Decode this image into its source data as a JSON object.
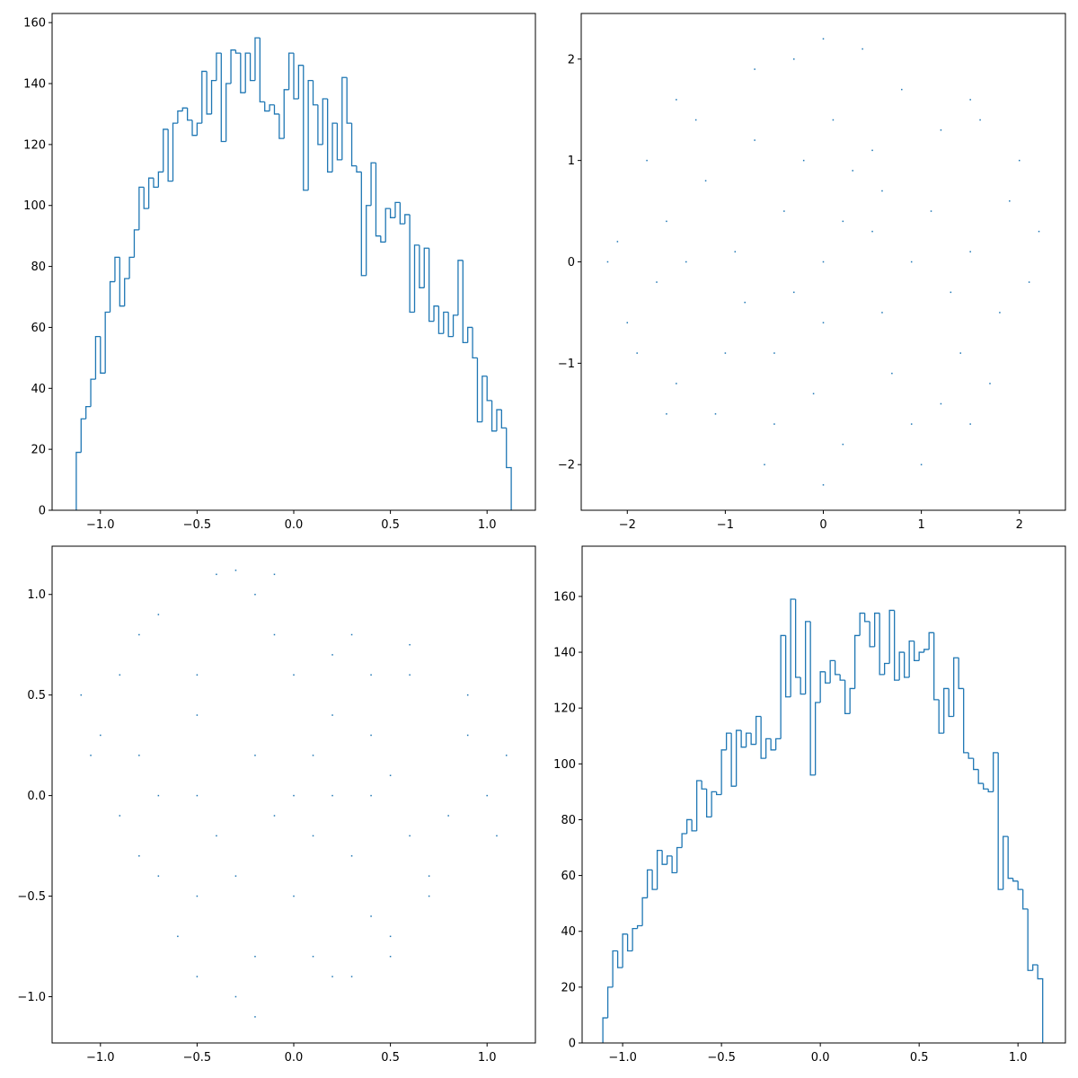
{
  "chart_data": [
    {
      "type": "histogram",
      "color": "#1f77b4",
      "bins": [
        -1.125,
        -1.1,
        -1.075,
        -1.05,
        -1.025,
        -1,
        -0.975,
        -0.95,
        -0.925,
        -0.9,
        -0.875,
        -0.85,
        -0.825,
        -0.8,
        -0.775,
        -0.75,
        -0.725,
        -0.7,
        -0.675,
        -0.65,
        -0.625,
        -0.6,
        -0.575,
        -0.55,
        -0.525,
        -0.5,
        -0.475,
        -0.45,
        -0.425,
        -0.4,
        -0.375,
        -0.35,
        -0.325,
        -0.3,
        -0.275,
        -0.25,
        -0.225,
        -0.2,
        -0.175,
        -0.15,
        -0.125,
        -0.1,
        -0.075,
        -0.05,
        -0.025,
        0,
        0.025,
        0.05,
        0.075,
        0.1,
        0.125,
        0.15,
        0.175,
        0.2,
        0.225,
        0.25,
        0.275,
        0.3,
        0.325,
        0.35,
        0.375,
        0.4,
        0.425,
        0.45,
        0.475,
        0.5,
        0.525,
        0.55,
        0.575,
        0.6,
        0.625,
        0.65,
        0.675,
        0.7,
        0.725,
        0.75,
        0.775,
        0.8,
        0.825,
        0.85,
        0.875,
        0.9,
        0.925,
        0.95,
        0.975,
        1,
        1.025,
        1.05,
        1.075,
        1.1,
        1.125
      ],
      "values": [
        19,
        30,
        34,
        43,
        57,
        45,
        65,
        75,
        83,
        67,
        76,
        83,
        92,
        106,
        99,
        109,
        106,
        111,
        125,
        108,
        127,
        131,
        132,
        128,
        123,
        127,
        144,
        130,
        141,
        150,
        121,
        140,
        151,
        150,
        137,
        150,
        141,
        155,
        134,
        131,
        133,
        130,
        122,
        138,
        150,
        135,
        146,
        105,
        141,
        133,
        120,
        135,
        111,
        127,
        115,
        142,
        127,
        113,
        111,
        77,
        100,
        114,
        90,
        88,
        99,
        96,
        101,
        94,
        97,
        65,
        87,
        73,
        86,
        62,
        67,
        58,
        65,
        57,
        64,
        82,
        55,
        60,
        50,
        29,
        44,
        36,
        26,
        33,
        27,
        14
      ],
      "xlim": [
        -1.25,
        1.25
      ],
      "ylim": [
        0,
        163
      ],
      "xticks": [
        {
          "value": -1,
          "label": "−1.0"
        },
        {
          "value": -0.5,
          "label": "−0.5"
        },
        {
          "value": 0,
          "label": "0.0"
        },
        0.5,
        {
          "value": 1,
          "label": "1.0"
        }
      ],
      "yticks": [
        0,
        20,
        40,
        60,
        80,
        100,
        120,
        140,
        160
      ]
    },
    {
      "type": "scatter",
      "color": "#1f77b4",
      "x": [
        0,
        0.5,
        -0.7,
        1.4,
        -1.6,
        0.2,
        1.9,
        -1.1,
        0.8,
        -0.3,
        2.1,
        -2.0,
        1.2,
        -1.3,
        0.9,
        -0.5,
        0.3,
        -0.9,
        1.5,
        0.6,
        -1.8,
        1.7,
        -0.1,
        0.1,
        -2.1,
        2.0,
        -1.5,
        1.0,
        -0.6,
        0.4,
        -1.2,
        1.1,
        -0.4,
        0.7,
        -0.8,
        1.8,
        -1.7,
        0.0,
        0.2,
        -0.2,
        1.3,
        -1.0,
        0.5,
        -0.7,
        1.6,
        -1.9,
        0.9,
        -0.5,
        1.2,
        -1.4,
        2.2,
        -2.2,
        0.0,
        0.0,
        1.5,
        -1.5,
        1.5,
        -1.6,
        0.6,
        -0.3
      ],
      "values": [
        0,
        0.3,
        1.2,
        -0.9,
        0.4,
        -1.8,
        0.6,
        -1.5,
        1.7,
        2.0,
        -0.2,
        -0.6,
        1.3,
        1.4,
        -1.6,
        -0.9,
        0.9,
        0.1,
        0.1,
        -0.5,
        1.0,
        -1.2,
        -1.3,
        1.4,
        0.2,
        1.0,
        -1.2,
        -2.0,
        -2.0,
        2.1,
        0.8,
        0.5,
        0.5,
        -1.1,
        -0.4,
        -0.5,
        -0.2,
        -0.6,
        0.4,
        1.0,
        -0.3,
        -0.9,
        1.1,
        1.9,
        1.4,
        -0.9,
        0.0,
        -1.6,
        -1.4,
        0.0,
        0.3,
        0.0,
        2.2,
        -2.2,
        -1.6,
        1.6,
        1.6,
        -1.5,
        0.7,
        -0.3
      ],
      "xlim": [
        -2.47,
        2.47
      ],
      "ylim": [
        -2.45,
        2.45
      ],
      "xticks": [
        {
          "value": -2,
          "label": "−2"
        },
        {
          "value": -1,
          "label": "−1"
        },
        0,
        1,
        2
      ],
      "yticks": [
        {
          "value": -2,
          "label": "−2"
        },
        {
          "value": -1,
          "label": "−1"
        },
        0,
        1,
        2
      ]
    },
    {
      "type": "scatter",
      "color": "#1f77b4",
      "x": [
        0,
        0.4,
        -0.5,
        0.7,
        -0.8,
        0.1,
        0.9,
        -0.6,
        0.3,
        -0.2,
        1.0,
        -1.0,
        0.6,
        -0.7,
        0.5,
        -0.3,
        0.2,
        -0.5,
        0.8,
        0.3,
        -0.9,
        0.7,
        0.0,
        0.0,
        -1.05,
        0.9,
        -0.7,
        0.3,
        -0.3,
        -0.1,
        -0.5,
        0.5,
        -0.2,
        0.4,
        -0.4,
        1.05,
        -0.9,
        0.1,
        0.1,
        -0.1,
        0.6,
        -0.5,
        0.2,
        -0.4,
        0.6,
        -0.8,
        0.4,
        -0.2,
        0.5,
        -0.7,
        1.1,
        -1.1,
        -0.3,
        -0.2,
        0.2,
        -0.8,
        0.4,
        -0.5,
        0.2,
        -0.1
      ],
      "values": [
        0,
        0.3,
        0.6,
        -0.4,
        0.2,
        -0.8,
        0.3,
        -0.7,
        0.8,
        1.0,
        0.0,
        0.3,
        0.6,
        0.9,
        -0.8,
        -0.4,
        0.4,
        0.0,
        -0.1,
        -0.3,
        0.6,
        -0.5,
        -0.5,
        0.6,
        0.2,
        0.5,
        -0.4,
        -0.9,
        -1.0,
        1.1,
        0.4,
        0.1,
        0.2,
        -0.6,
        -0.2,
        -0.2,
        -0.1,
        -0.2,
        0.2,
        0.8,
        -0.2,
        -0.5,
        0.7,
        1.1,
        0.75,
        -0.3,
        0.0,
        -0.8,
        -0.7,
        0.0,
        0.2,
        0.5,
        1.12,
        -1.1,
        -0.9,
        0.8,
        0.6,
        -0.9,
        0.0,
        -0.1
      ],
      "xlim": [
        -1.25,
        1.25
      ],
      "ylim": [
        -1.23,
        1.24
      ],
      "xticks": [
        {
          "value": -1,
          "label": "−1.0"
        },
        {
          "value": -0.5,
          "label": "−0.5"
        },
        {
          "value": 0,
          "label": "0.0"
        },
        0.5,
        {
          "value": 1,
          "label": "1.0"
        }
      ],
      "yticks": [
        {
          "value": -1,
          "label": "−1.0"
        },
        {
          "value": -0.5,
          "label": "−0.5"
        },
        {
          "value": 0,
          "label": "0.0"
        },
        0.5,
        {
          "value": 1,
          "label": "1.0"
        }
      ]
    },
    {
      "type": "histogram",
      "color": "#1f77b4",
      "bins": [
        -1.1,
        -1.075,
        -1.05,
        -1.025,
        -1,
        -0.975,
        -0.95,
        -0.925,
        -0.9,
        -0.875,
        -0.85,
        -0.825,
        -0.8,
        -0.775,
        -0.75,
        -0.725,
        -0.7,
        -0.675,
        -0.65,
        -0.625,
        -0.6,
        -0.575,
        -0.55,
        -0.525,
        -0.5,
        -0.475,
        -0.45,
        -0.425,
        -0.4,
        -0.375,
        -0.35,
        -0.325,
        -0.3,
        -0.275,
        -0.25,
        -0.225,
        -0.2,
        -0.175,
        -0.15,
        -0.125,
        -0.1,
        -0.075,
        -0.05,
        -0.025,
        0,
        0.025,
        0.05,
        0.075,
        0.1,
        0.125,
        0.15,
        0.175,
        0.2,
        0.225,
        0.25,
        0.275,
        0.3,
        0.325,
        0.35,
        0.375,
        0.4,
        0.425,
        0.45,
        0.475,
        0.5,
        0.525,
        0.55,
        0.575,
        0.6,
        0.625,
        0.65,
        0.675,
        0.7,
        0.725,
        0.75,
        0.775,
        0.8,
        0.825,
        0.85,
        0.875,
        0.9,
        0.925,
        0.95,
        0.975,
        1,
        1.025,
        1.05,
        1.075,
        1.1,
        1.125
      ],
      "values": [
        9,
        20,
        33,
        27,
        39,
        33,
        41,
        42,
        52,
        62,
        55,
        69,
        64,
        67,
        61,
        70,
        75,
        80,
        76,
        94,
        91,
        81,
        90,
        89,
        105,
        111,
        92,
        112,
        106,
        111,
        107,
        117,
        102,
        109,
        105,
        109,
        146,
        124,
        159,
        131,
        125,
        151,
        96,
        122,
        133,
        129,
        137,
        132,
        130,
        118,
        127,
        146,
        154,
        151,
        142,
        154,
        132,
        136,
        155,
        130,
        140,
        131,
        144,
        137,
        140,
        141,
        147,
        123,
        111,
        127,
        117,
        138,
        127,
        104,
        102,
        98,
        93,
        91,
        90,
        104,
        55,
        74,
        59,
        58,
        55,
        48,
        26,
        28,
        23
      ],
      "xlim": [
        -1.205,
        1.24
      ],
      "ylim": [
        0,
        178
      ],
      "xticks": [
        {
          "value": -1,
          "label": "−1.0"
        },
        {
          "value": -0.5,
          "label": "−0.5"
        },
        {
          "value": 0,
          "label": "0.0"
        },
        0.5,
        {
          "value": 1,
          "label": "1.0"
        }
      ],
      "yticks": [
        0,
        20,
        40,
        60,
        80,
        100,
        120,
        140,
        160
      ]
    }
  ]
}
